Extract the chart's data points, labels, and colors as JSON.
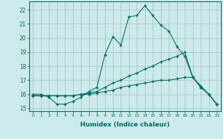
{
  "xlabel": "Humidex (Indice chaleur)",
  "ylabel": "",
  "background_color": "#cceaea",
  "grid_color": "#aacccc",
  "line_color": "#006868",
  "ylim": [
    14.8,
    22.6
  ],
  "xlim": [
    -0.5,
    23.5
  ],
  "yticks": [
    15,
    16,
    17,
    18,
    19,
    20,
    21,
    22
  ],
  "xticks": [
    0,
    1,
    2,
    3,
    4,
    5,
    6,
    7,
    8,
    9,
    10,
    11,
    12,
    13,
    14,
    15,
    16,
    17,
    18,
    19,
    20,
    21,
    22,
    23
  ],
  "line1_x": [
    0,
    1,
    2,
    3,
    4,
    5,
    6,
    7,
    8,
    9,
    10,
    11,
    12,
    13,
    14,
    15,
    16,
    17,
    18,
    19,
    20,
    21,
    22,
    23
  ],
  "line1_y": [
    16.0,
    16.0,
    15.8,
    15.3,
    15.3,
    15.5,
    15.8,
    16.2,
    16.5,
    18.8,
    20.1,
    19.5,
    21.5,
    21.6,
    22.3,
    21.6,
    20.9,
    20.5,
    19.4,
    18.7,
    17.2,
    16.6,
    16.0,
    15.3
  ],
  "line2_x": [
    0,
    1,
    2,
    3,
    4,
    5,
    6,
    7,
    8,
    9,
    10,
    11,
    12,
    13,
    14,
    15,
    16,
    17,
    18,
    19,
    20,
    21,
    22,
    23
  ],
  "line2_y": [
    15.9,
    15.9,
    15.9,
    15.9,
    15.9,
    15.9,
    16.0,
    16.1,
    16.2,
    16.5,
    16.8,
    17.0,
    17.3,
    17.5,
    17.8,
    18.0,
    18.3,
    18.5,
    18.7,
    19.0,
    17.2,
    16.5,
    16.0,
    15.3
  ],
  "line3_x": [
    0,
    1,
    2,
    3,
    4,
    5,
    6,
    7,
    8,
    9,
    10,
    11,
    12,
    13,
    14,
    15,
    16,
    17,
    18,
    19,
    20,
    21,
    22,
    23
  ],
  "line3_y": [
    15.9,
    15.9,
    15.9,
    15.9,
    15.9,
    15.9,
    16.0,
    16.0,
    16.1,
    16.2,
    16.3,
    16.5,
    16.6,
    16.7,
    16.8,
    16.9,
    17.0,
    17.0,
    17.1,
    17.2,
    17.2,
    16.5,
    16.0,
    15.3
  ]
}
